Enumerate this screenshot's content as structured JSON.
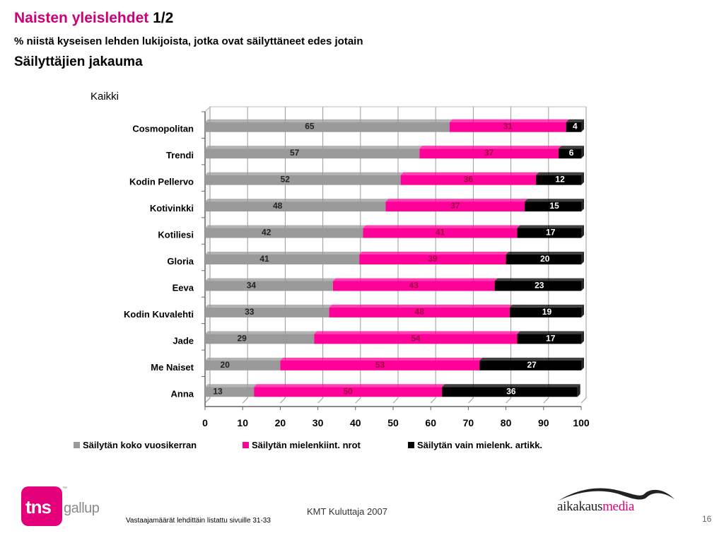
{
  "header": {
    "title_pink": "Naisten yleislehdet",
    "title_rest": "1/2",
    "subtitle": "% niistä kyseisen lehden lukijoista, jotka ovat säilyttäneet edes jotain",
    "subtitle2": "Säilyttäjien jakauma"
  },
  "chart_data": {
    "type": "bar",
    "orientation": "horizontal",
    "stacked": true,
    "title": "Kaikki",
    "categories": [
      "Cosmopolitan",
      "Trendi",
      "Kodin Pellervo",
      "Kotivinkki",
      "Kotiliesi",
      "Gloria",
      "Eeva",
      "Kodin Kuvalehti",
      "Jade",
      "Me Naiset",
      "Anna"
    ],
    "series": [
      {
        "name": "Säilytän koko vuosikerran",
        "color": "#9a9a9a",
        "values": [
          65,
          57,
          52,
          48,
          42,
          41,
          34,
          33,
          29,
          20,
          13
        ]
      },
      {
        "name": "Säilytän mielenkiint. nrot",
        "color": "#ff0099",
        "values": [
          31,
          37,
          36,
          37,
          41,
          39,
          43,
          48,
          54,
          53,
          50
        ]
      },
      {
        "name": "Säilytän vain mielenk. artikk.",
        "color": "#000000",
        "values": [
          4,
          6,
          12,
          15,
          17,
          20,
          23,
          19,
          17,
          27,
          36
        ]
      }
    ],
    "xlim": [
      0,
      100
    ],
    "xticks": [
      "0",
      "10",
      "20",
      "30",
      "40",
      "50",
      "60",
      "70",
      "80",
      "90",
      "100"
    ],
    "grid": true,
    "legend": "bottom"
  },
  "footer": {
    "source": "KMT Kuluttaja 2007",
    "note": "Vastaajamäärät lehdittäin listattu sivuille 31-33",
    "page": "16",
    "logo_left": {
      "tns": "tns",
      "gallup": "gallup",
      "tm": "™"
    },
    "logo_right": {
      "part1": "aikakaus",
      "part2": "media"
    }
  }
}
